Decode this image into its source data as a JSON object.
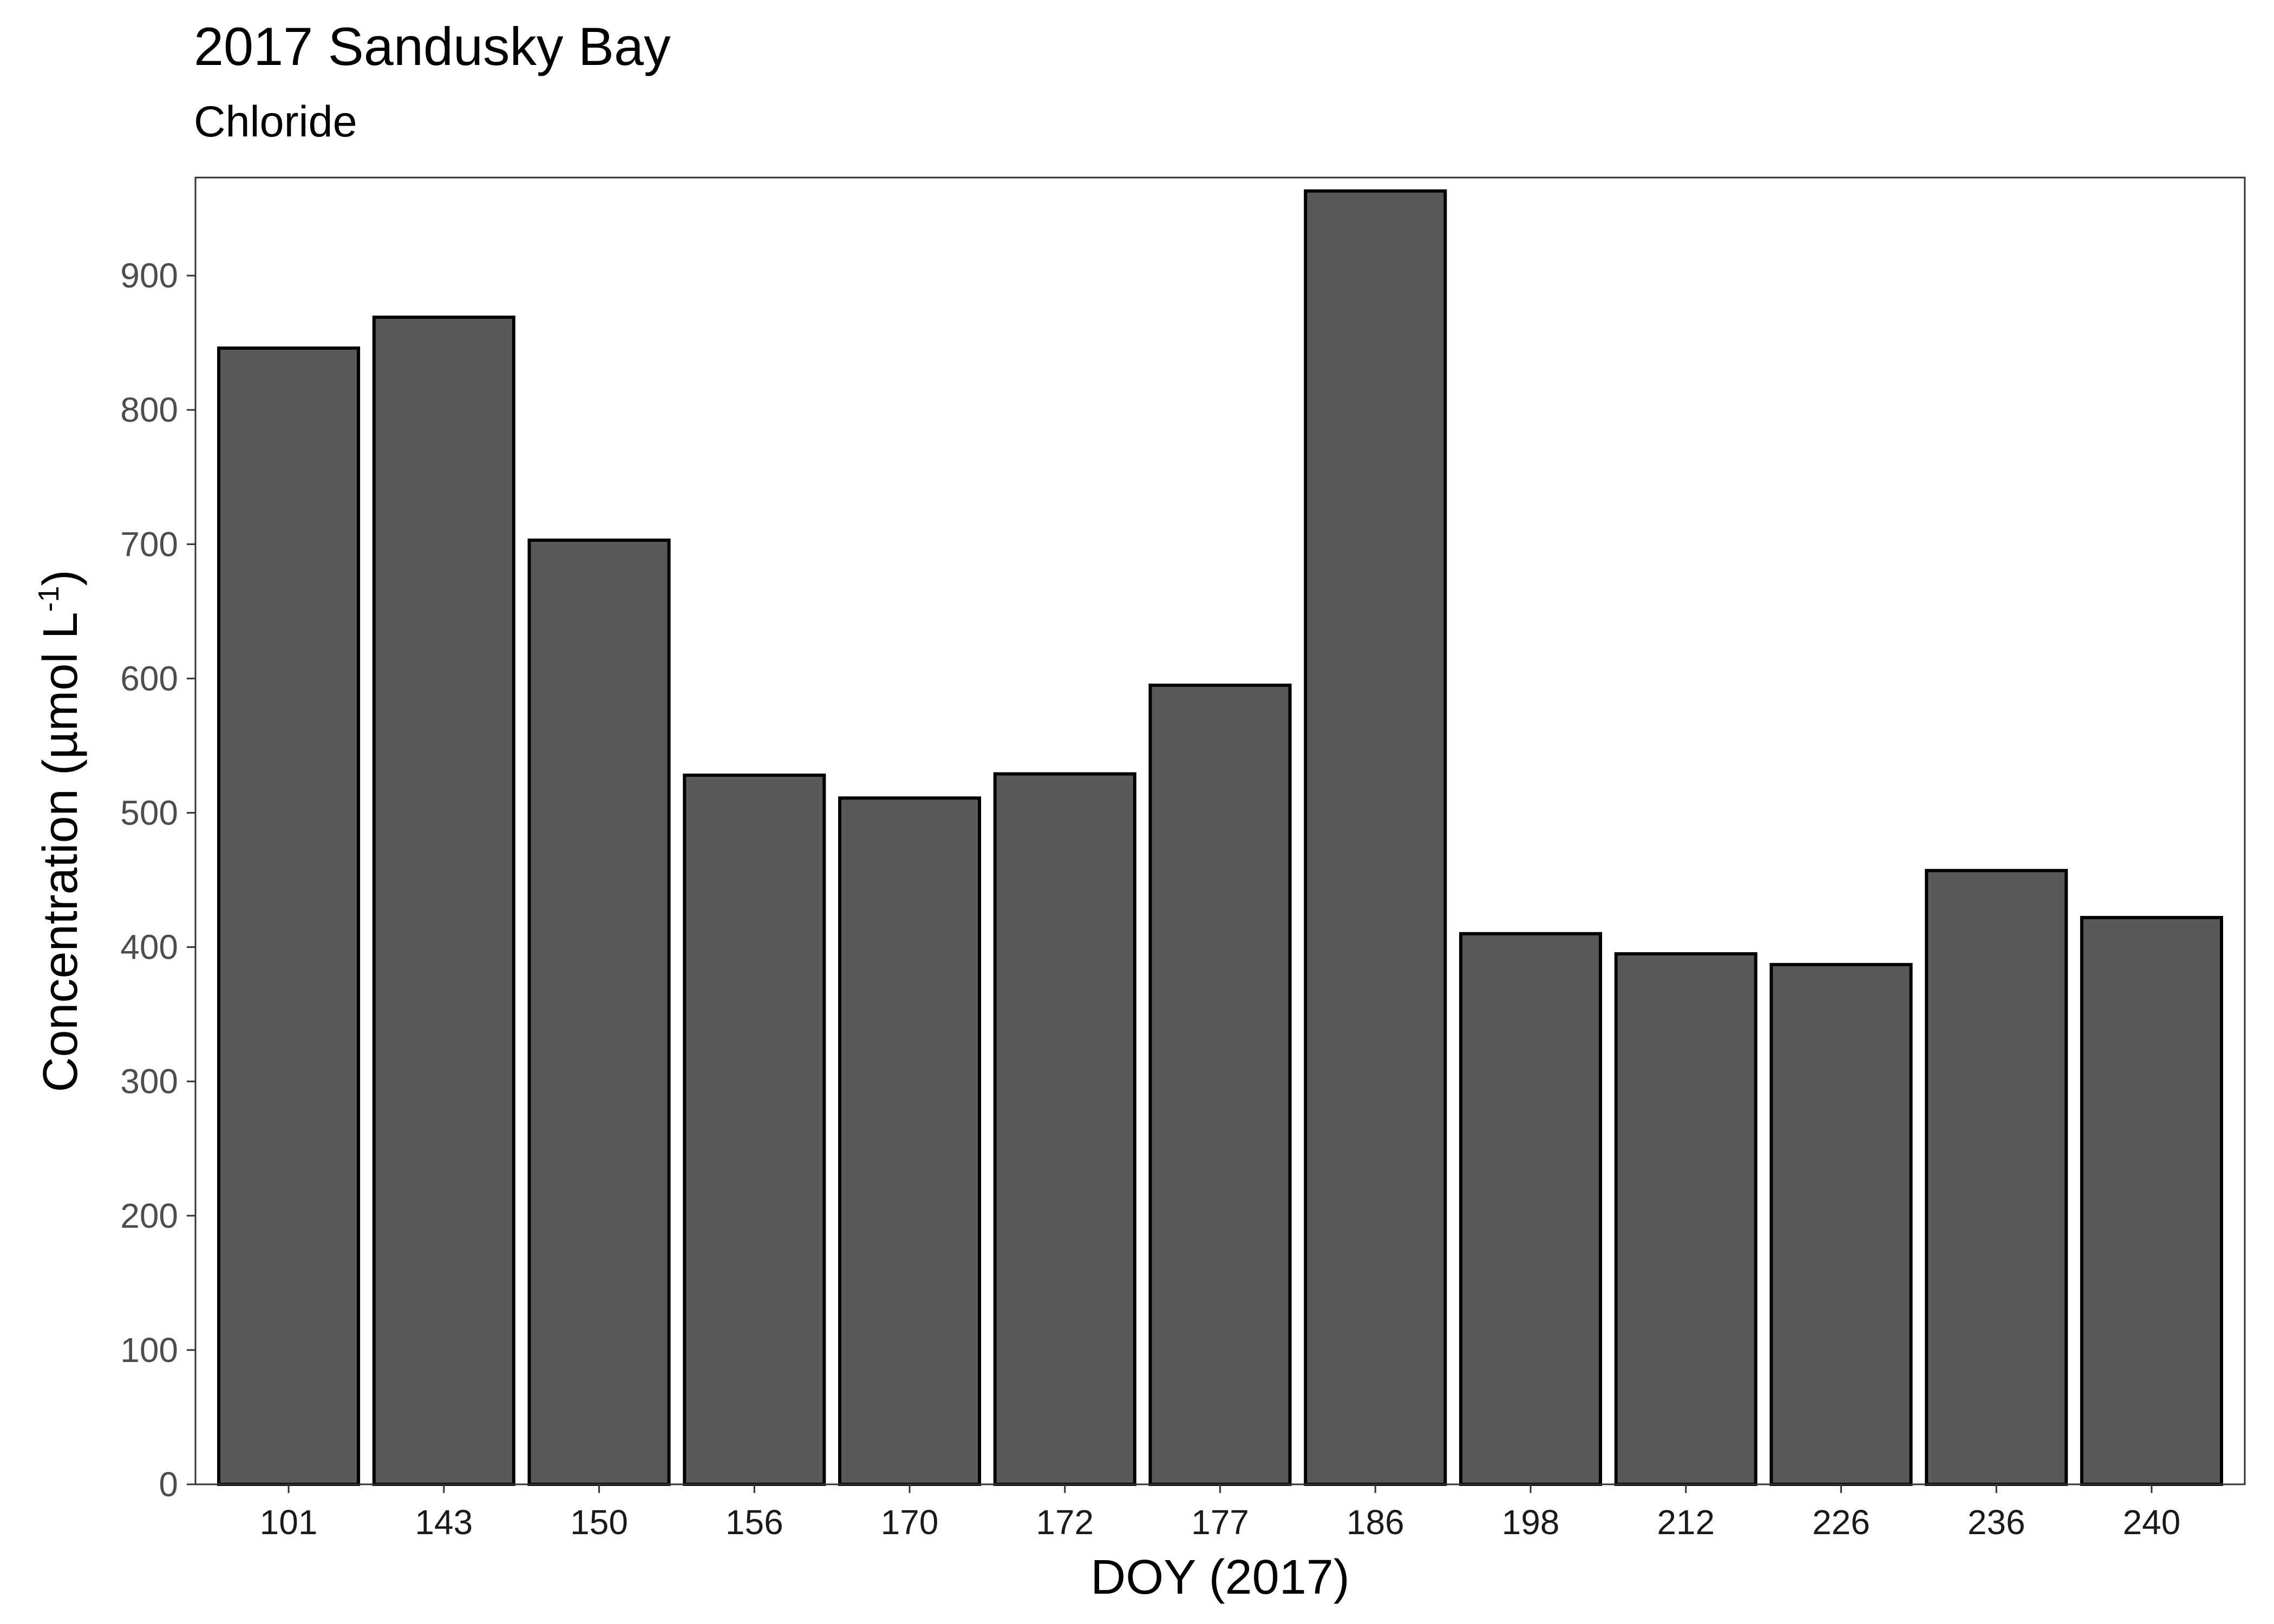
{
  "chart_data": {
    "type": "bar",
    "title": "2017 Sandusky Bay",
    "subtitle": "Chloride",
    "xlabel": "DOY (2017)",
    "ylabel": {
      "main": "Concentration (µmol L",
      "superscript": "-1",
      "close": ")"
    },
    "categories": [
      "101",
      "143",
      "150",
      "156",
      "170",
      "172",
      "177",
      "186",
      "198",
      "212",
      "226",
      "236",
      "240"
    ],
    "values": [
      846,
      869,
      703,
      528,
      511,
      529,
      595,
      963,
      410,
      395,
      387,
      457,
      422
    ],
    "ylim": [
      0,
      973
    ],
    "yticks": [
      0,
      100,
      200,
      300,
      400,
      500,
      600,
      700,
      800,
      900
    ],
    "grid": false,
    "legend": "none",
    "colors": {
      "bar_fill": "#595959",
      "bar_stroke": "#000000",
      "panel_border": "#333333",
      "tick_label": "#4d4d4d"
    }
  }
}
